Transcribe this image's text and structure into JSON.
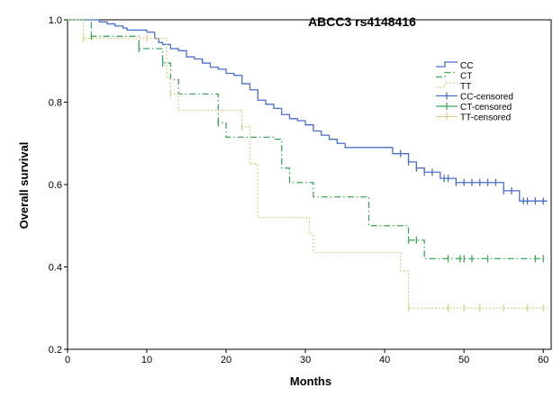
{
  "chart_data": {
    "type": "line",
    "title": "ABCC3 rs4148416",
    "xlabel": "Months",
    "ylabel": "Overall survival",
    "xlim": [
      0,
      61
    ],
    "ylim": [
      0.2,
      1.0
    ],
    "x_ticks": [
      0,
      10,
      20,
      30,
      40,
      50,
      60
    ],
    "x_tick_labels": [
      "0",
      "10",
      "20",
      "30",
      "40",
      "50",
      "60"
    ],
    "y_ticks": [
      0.2,
      0.4,
      0.6,
      0.8,
      1.0
    ],
    "y_tick_labels": [
      "0.2",
      "0.4",
      "0.6",
      "0.8",
      "1.0"
    ],
    "legend_position": "right",
    "series": [
      {
        "name": "CC",
        "color": "#4a6fc8",
        "dash": "solid",
        "steps": [
          [
            0,
            1.0
          ],
          [
            4,
            0.995
          ],
          [
            5,
            0.99
          ],
          [
            6,
            0.985
          ],
          [
            7,
            0.98
          ],
          [
            7.5,
            0.975
          ],
          [
            10,
            0.97
          ],
          [
            11,
            0.955
          ],
          [
            11.5,
            0.945
          ],
          [
            12,
            0.94
          ],
          [
            13,
            0.93
          ],
          [
            14,
            0.925
          ],
          [
            15,
            0.91
          ],
          [
            16,
            0.905
          ],
          [
            17,
            0.895
          ],
          [
            18,
            0.885
          ],
          [
            19,
            0.88
          ],
          [
            20,
            0.87
          ],
          [
            21,
            0.865
          ],
          [
            22,
            0.845
          ],
          [
            23,
            0.83
          ],
          [
            24,
            0.805
          ],
          [
            25,
            0.795
          ],
          [
            26,
            0.785
          ],
          [
            27,
            0.77
          ],
          [
            28,
            0.76
          ],
          [
            29,
            0.755
          ],
          [
            30,
            0.745
          ],
          [
            31,
            0.73
          ],
          [
            32,
            0.72
          ],
          [
            33,
            0.71
          ],
          [
            34,
            0.7
          ],
          [
            35,
            0.69
          ],
          [
            37,
            0.69
          ],
          [
            38,
            0.69
          ],
          [
            41,
            0.675
          ],
          [
            43,
            0.655
          ],
          [
            44,
            0.64
          ],
          [
            45,
            0.63
          ],
          [
            47,
            0.615
          ],
          [
            49,
            0.605
          ],
          [
            55,
            0.585
          ],
          [
            57,
            0.56
          ],
          [
            60,
            0.56
          ]
        ],
        "end_x": 60.5,
        "censored": [
          42,
          43,
          44,
          45,
          46,
          47.5,
          48,
          49,
          50,
          51,
          52,
          53,
          54,
          55,
          56,
          57.5,
          58,
          59,
          60
        ]
      },
      {
        "name": "CT",
        "color": "#3ca85a",
        "dash": "dashdot",
        "steps": [
          [
            0,
            1.0
          ],
          [
            3,
            0.96
          ],
          [
            9,
            0.93
          ],
          [
            12,
            0.895
          ],
          [
            13,
            0.855
          ],
          [
            14,
            0.82
          ],
          [
            19,
            0.75
          ],
          [
            20,
            0.715
          ],
          [
            24,
            0.715
          ],
          [
            26,
            0.71
          ],
          [
            27,
            0.64
          ],
          [
            28,
            0.605
          ],
          [
            31,
            0.57
          ],
          [
            38,
            0.5
          ],
          [
            43,
            0.465
          ],
          [
            45,
            0.42
          ],
          [
            60,
            0.42
          ]
        ],
        "end_x": 60.5,
        "censored": [
          3,
          9,
          12,
          19,
          43,
          44,
          48,
          49.5,
          50,
          51,
          53,
          59,
          60
        ]
      },
      {
        "name": "TT",
        "color": "#d9d08a",
        "dash": "dotted",
        "steps": [
          [
            0,
            1.0
          ],
          [
            2,
            0.955
          ],
          [
            12.5,
            0.86
          ],
          [
            13,
            0.82
          ],
          [
            14,
            0.78
          ],
          [
            22,
            0.74
          ],
          [
            23,
            0.65
          ],
          [
            24,
            0.52
          ],
          [
            30.5,
            0.48
          ],
          [
            31,
            0.435
          ],
          [
            42,
            0.39
          ],
          [
            43,
            0.3
          ],
          [
            60,
            0.3
          ]
        ],
        "end_x": 60.5,
        "censored": [
          2,
          10,
          13,
          22,
          43,
          48,
          50,
          52,
          55,
          58,
          60
        ]
      }
    ],
    "legend": [
      {
        "label": "CC",
        "series": 0,
        "kind": "line"
      },
      {
        "label": "CT",
        "series": 1,
        "kind": "line"
      },
      {
        "label": "TT",
        "series": 2,
        "kind": "line"
      },
      {
        "label": "CC-censored",
        "series": 0,
        "kind": "censor"
      },
      {
        "label": "CT-censored",
        "series": 1,
        "kind": "censor"
      },
      {
        "label": "TT-censored",
        "series": 2,
        "kind": "censor"
      }
    ]
  }
}
